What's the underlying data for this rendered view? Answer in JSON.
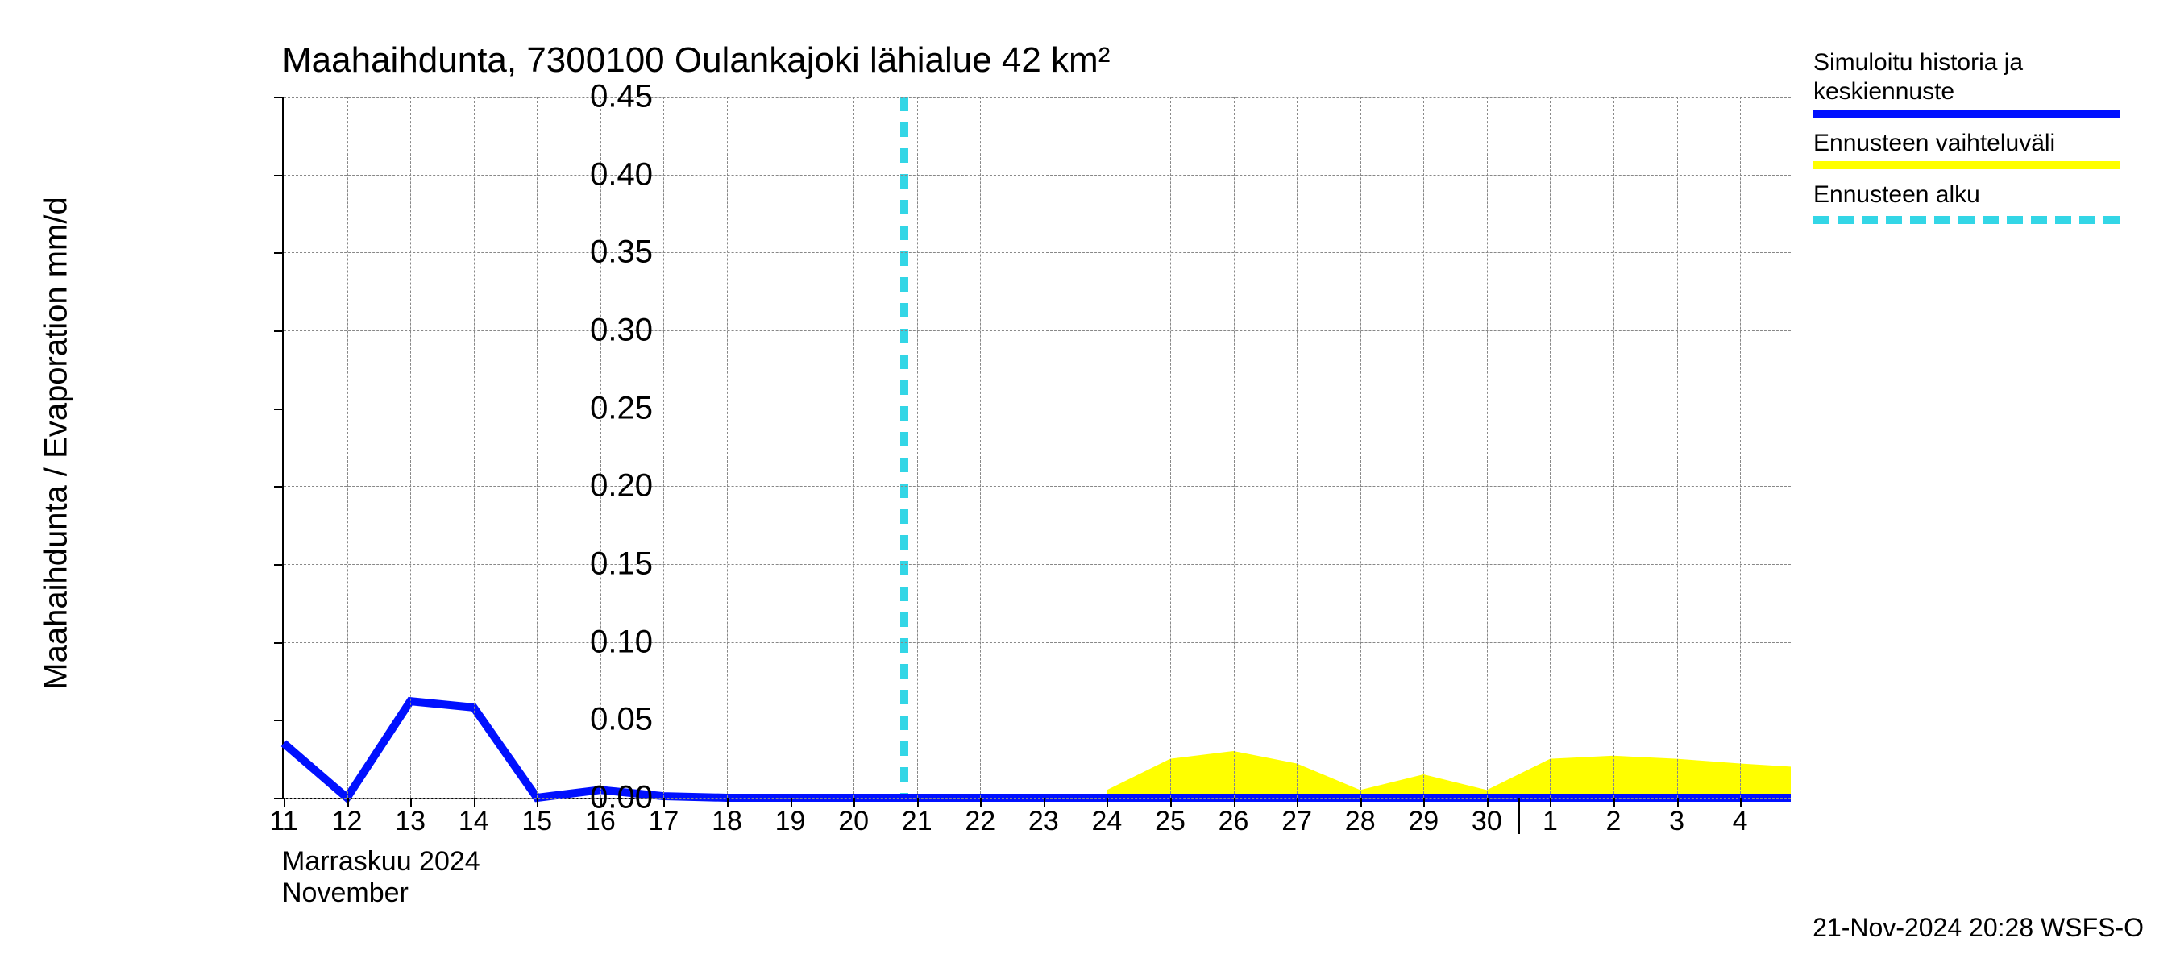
{
  "chart": {
    "type": "line_with_area",
    "title": "Maahaihdunta, 7300100 Oulankajoki lähialue 42 km²",
    "y_axis_label": "Maahaihdunta / Evaporation   mm/d",
    "month_line1": "Marraskuu 2024",
    "month_line2": "November",
    "timestamp": "21-Nov-2024 20:28 WSFS-O",
    "background_color": "#ffffff",
    "grid_color": "#888888",
    "axis_color": "#000000",
    "title_fontsize": 44,
    "label_fontsize": 40,
    "tick_fontsize": 34,
    "ylim": [
      0,
      0.45
    ],
    "ytick_step": 0.05,
    "y_ticks": [
      0.0,
      0.05,
      0.1,
      0.15,
      0.2,
      0.25,
      0.3,
      0.35,
      0.4,
      0.45
    ],
    "y_tick_labels": [
      "0.00",
      "0.05",
      "0.10",
      "0.15",
      "0.20",
      "0.25",
      "0.30",
      "0.35",
      "0.40",
      "0.45"
    ],
    "x_days": [
      "11",
      "12",
      "13",
      "14",
      "15",
      "16",
      "17",
      "18",
      "19",
      "20",
      "21",
      "22",
      "23",
      "24",
      "25",
      "26",
      "27",
      "28",
      "29",
      "30",
      "1",
      "2",
      "3",
      "4"
    ],
    "x_count": 24,
    "month_split_index": 20,
    "forecast_start_x": 9.8,
    "forecast_line_color": "#33d6e6",
    "forecast_line_dash": "18 14",
    "forecast_line_width": 10,
    "history_series": {
      "color": "#0010ff",
      "line_width": 10,
      "x": [
        0,
        1,
        2,
        3,
        4,
        5,
        6,
        7,
        8,
        9,
        10,
        11,
        12,
        13,
        14,
        15,
        16,
        17,
        18,
        19,
        20,
        21,
        22,
        23,
        23.8
      ],
      "y": [
        0.035,
        0.0,
        0.062,
        0.058,
        0.0,
        0.005,
        0.001,
        0.0,
        0.0,
        0.0,
        0.0,
        0.0,
        0.0,
        0.0,
        0.0,
        0.0,
        0.0,
        0.0,
        0.0,
        0.0,
        0.0,
        0.0,
        0.0,
        0.0,
        0.0
      ]
    },
    "forecast_range": {
      "color": "#ffff00",
      "x": [
        13,
        14,
        15,
        16,
        17,
        18,
        19,
        20,
        21,
        22,
        23,
        23.8
      ],
      "upper": [
        0.005,
        0.025,
        0.03,
        0.022,
        0.005,
        0.015,
        0.005,
        0.025,
        0.027,
        0.025,
        0.022,
        0.02
      ],
      "lower": [
        0.0,
        0.0,
        0.0,
        0.0,
        0.0,
        0.0,
        0.0,
        0.0,
        0.0,
        0.0,
        0.0,
        0.0
      ]
    },
    "legend": [
      {
        "label": "Simuloitu historia ja keskiennuste",
        "type": "line",
        "color": "#0010ff"
      },
      {
        "label": "Ennusteen vaihteluväli",
        "type": "fill",
        "color": "#ffff00"
      },
      {
        "label": "Ennusteen alku",
        "type": "dashed",
        "color": "#33d6e6"
      }
    ]
  }
}
